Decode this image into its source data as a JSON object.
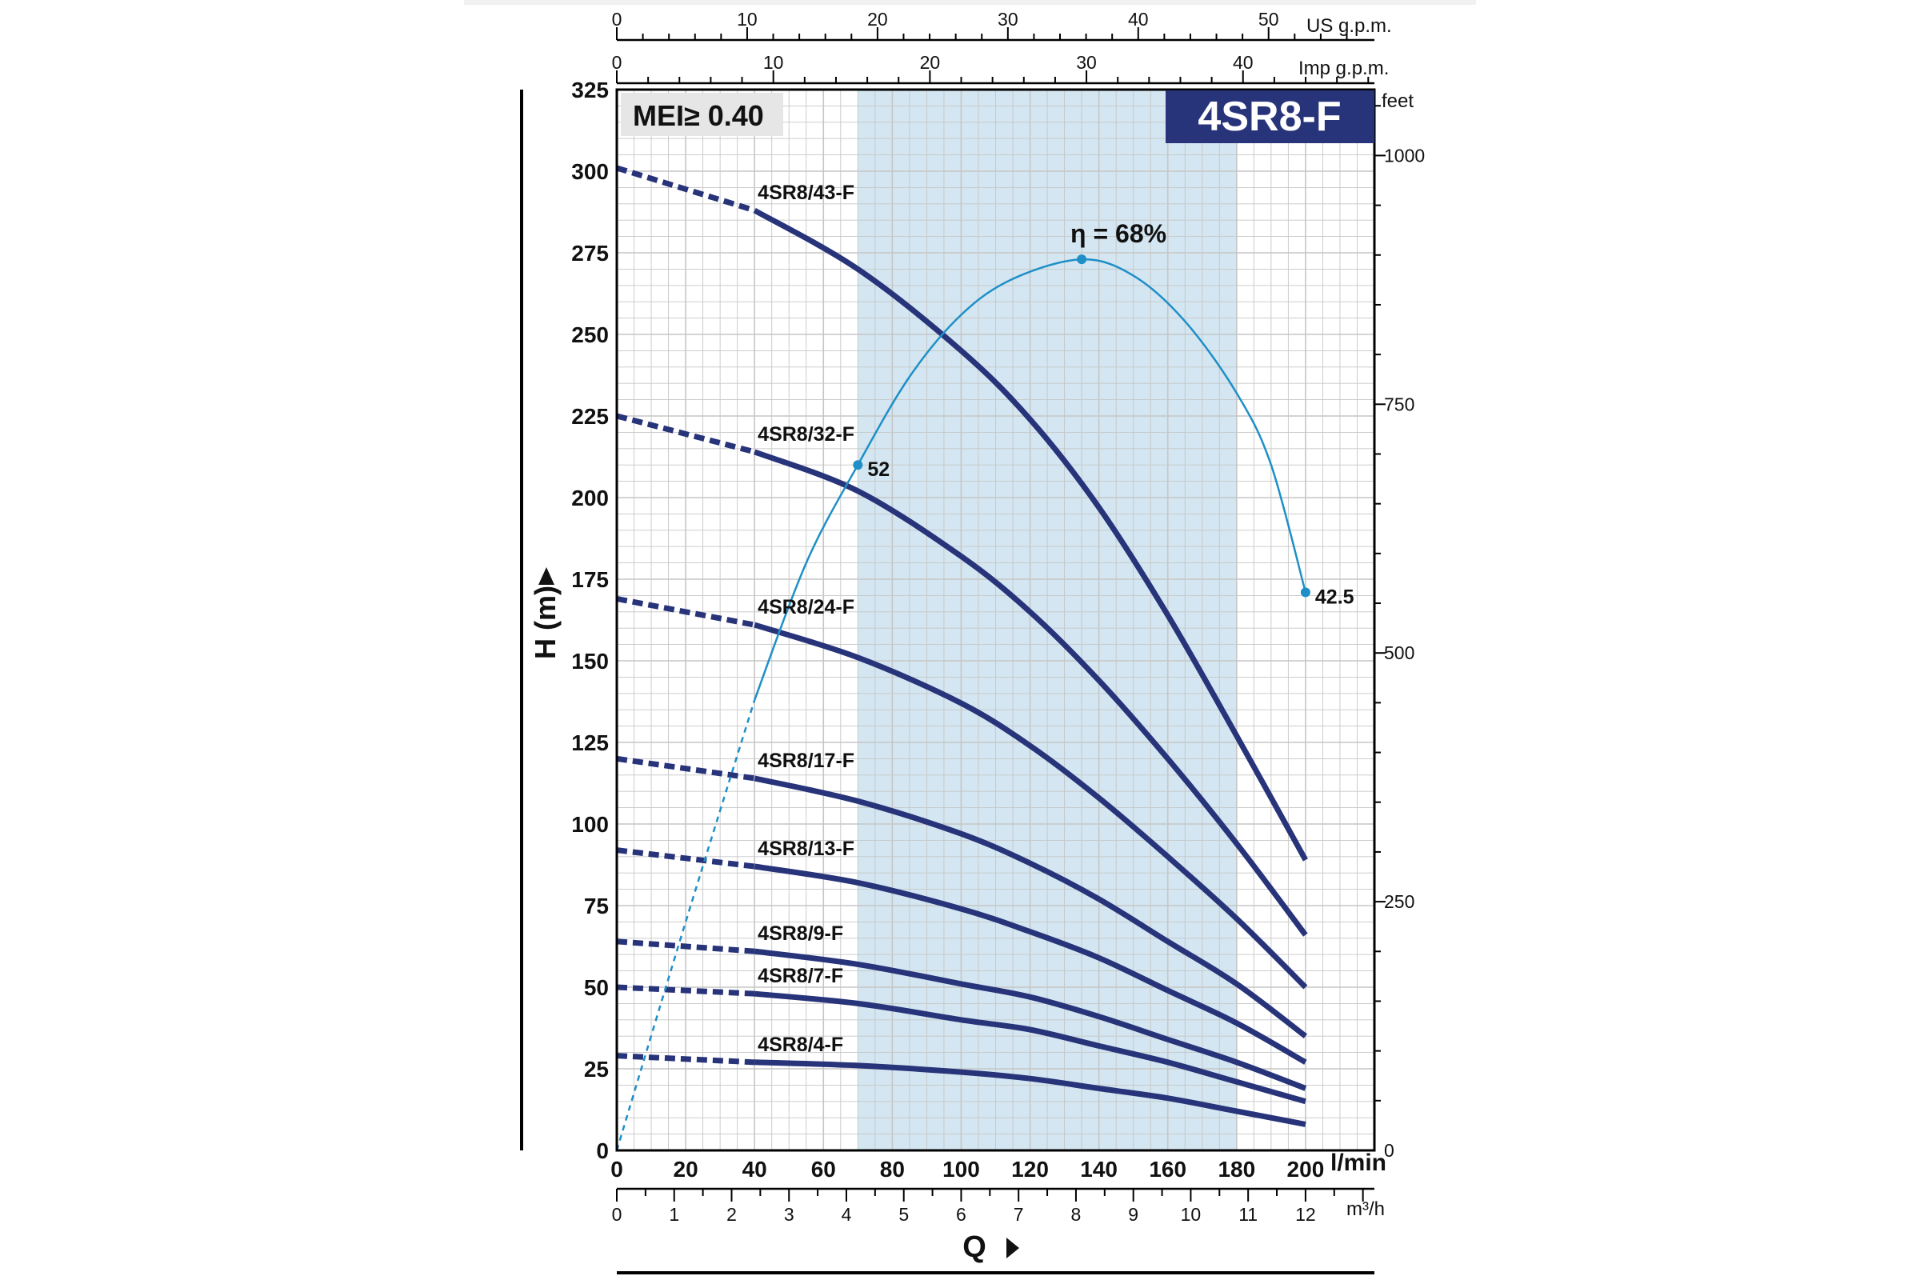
{
  "chart_data": {
    "type": "line",
    "title": "4SR8-F",
    "badge": "MEI≥ 0.40",
    "xlabel": "Q",
    "ylabel": "H (m)",
    "x_unit_main": "l/min",
    "x_unit_bottom": "m³/h",
    "x_unit_top1": "US g.p.m.",
    "x_unit_top2": "Imp g.p.m.",
    "y_unit_right": "feet",
    "xlim": [
      0,
      220
    ],
    "ylim": [
      0,
      325
    ],
    "grid": true,
    "x_ticks": [
      0,
      20,
      40,
      60,
      80,
      100,
      120,
      140,
      160,
      180,
      200
    ],
    "y_ticks": [
      0,
      25,
      50,
      75,
      100,
      125,
      150,
      175,
      200,
      225,
      250,
      275,
      300,
      325
    ],
    "feet_ticks": [
      0,
      250,
      500,
      750,
      1000
    ],
    "m3h_ticks": [
      0,
      1,
      2,
      3,
      4,
      5,
      6,
      7,
      8,
      9,
      10,
      11,
      12
    ],
    "usgpm_ticks": [
      0,
      10,
      20,
      30,
      40,
      50
    ],
    "impgpm_ticks": [
      0,
      10,
      20,
      30,
      40
    ],
    "recommended_range": [
      70,
      180
    ],
    "series": [
      {
        "name": "4SR8/43-F",
        "x": [
          0,
          40,
          70,
          100,
          120,
          140,
          160,
          180,
          200
        ],
        "y": [
          301,
          288,
          270,
          245,
          224,
          197,
          164,
          127,
          89
        ]
      },
      {
        "name": "4SR8/32-F",
        "x": [
          0,
          40,
          70,
          100,
          120,
          140,
          160,
          180,
          200
        ],
        "y": [
          225,
          214,
          202,
          182,
          165,
          144,
          120,
          94,
          66
        ]
      },
      {
        "name": "4SR8/24-F",
        "x": [
          0,
          40,
          70,
          100,
          120,
          140,
          160,
          180,
          200
        ],
        "y": [
          169,
          161,
          151,
          137,
          124,
          108,
          90,
          71,
          50
        ]
      },
      {
        "name": "4SR8/17-F",
        "x": [
          0,
          40,
          70,
          100,
          120,
          140,
          160,
          180,
          200
        ],
        "y": [
          120,
          114,
          107,
          97,
          88,
          77,
          64,
          51,
          35
        ]
      },
      {
        "name": "4SR8/13-F",
        "x": [
          0,
          40,
          70,
          100,
          120,
          140,
          160,
          180,
          200
        ],
        "y": [
          92,
          87,
          82,
          74,
          67,
          59,
          49,
          39,
          27
        ]
      },
      {
        "name": "4SR8/9-F",
        "x": [
          0,
          40,
          70,
          100,
          120,
          140,
          160,
          180,
          200
        ],
        "y": [
          64,
          61,
          57,
          51,
          47,
          41,
          34,
          27,
          19
        ]
      },
      {
        "name": "4SR8/7-F",
        "x": [
          0,
          40,
          70,
          100,
          120,
          140,
          160,
          180,
          200
        ],
        "y": [
          50,
          48,
          45,
          40,
          37,
          32,
          27,
          21,
          15
        ]
      },
      {
        "name": "4SR8/4-F",
        "x": [
          0,
          40,
          70,
          100,
          120,
          140,
          160,
          180,
          200
        ],
        "y": [
          29,
          27,
          26,
          24,
          22,
          19,
          16,
          12,
          8
        ]
      }
    ],
    "efficiency": {
      "label": "η = 68%",
      "x": [
        0,
        20,
        40,
        55,
        70,
        85,
        100,
        115,
        135,
        150,
        165,
        180,
        190,
        200
      ],
      "y": [
        0,
        70,
        138,
        180,
        210,
        237,
        256,
        267,
        273,
        268,
        254,
        232,
        210,
        171
      ],
      "markers": [
        {
          "x": 70,
          "y": 210,
          "label": "52"
        },
        {
          "x": 135,
          "y": 273,
          "label": ""
        },
        {
          "x": 200,
          "y": 171,
          "label": "42.5"
        }
      ]
    },
    "colors": {
      "curve": "#28347a",
      "efficiency": "#1e8fc7",
      "band": "#d3e6f1",
      "grid": "#c6c6c6",
      "title_bg": "#28347a",
      "badge_bg": "#e6e6e6"
    }
  }
}
